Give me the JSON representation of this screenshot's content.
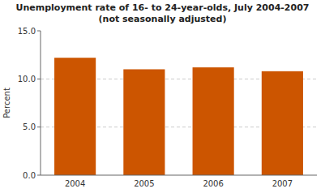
{
  "chart_data": {
    "type": "bar",
    "title": "Unemployment rate of 16- to 24-year-olds, July 2004-2007",
    "subtitle": "(not seasonally adjusted)",
    "categories": [
      "2004",
      "2005",
      "2006",
      "2007"
    ],
    "values": [
      12.2,
      11.0,
      11.2,
      10.8
    ],
    "color": "#cc5500",
    "ylabel": "Percent",
    "ylim": [
      0.0,
      15.0
    ],
    "yticks": [
      {
        "value": 0.0,
        "label": "0.0"
      },
      {
        "value": 5.0,
        "label": "5.0"
      },
      {
        "value": 10.0,
        "label": "10.0"
      },
      {
        "value": 15.0,
        "label": "15.0"
      }
    ],
    "grid": true
  }
}
